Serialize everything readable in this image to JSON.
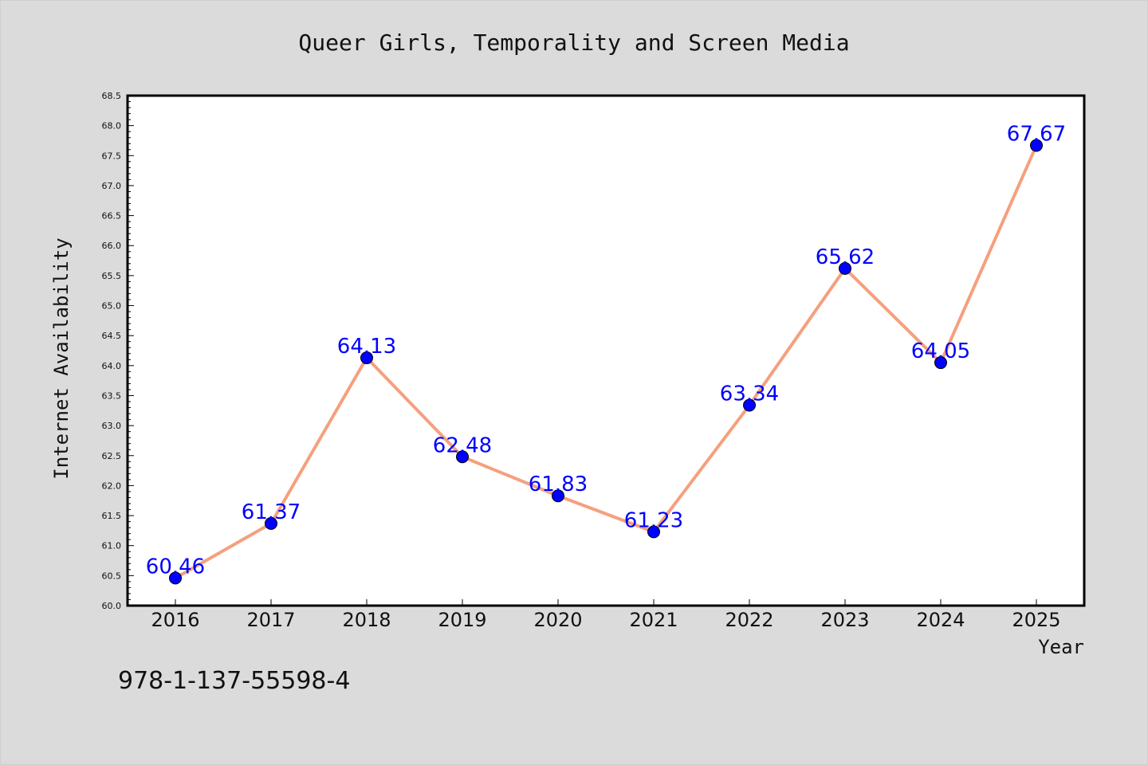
{
  "chart_data": {
    "type": "line",
    "title": "Queer Girls, Temporality and Screen Media",
    "xlabel": "Year",
    "ylabel": "Internet Availability",
    "categories": [
      "2016",
      "2017",
      "2018",
      "2019",
      "2020",
      "2021",
      "2022",
      "2023",
      "2024",
      "2025"
    ],
    "series": [
      {
        "values": [
          60.46,
          61.37,
          64.13,
          62.48,
          61.83,
          61.23,
          63.34,
          65.62,
          64.05,
          67.67
        ],
        "data_labels": [
          "60.46",
          "61.37",
          "64.13",
          "62.48",
          "61.83",
          "61.23",
          "63.34",
          "65.62",
          "64.05",
          "67.67"
        ],
        "line_color": "#f5a07e",
        "marker_color": "#0000ff",
        "label_color": "#0000ff"
      }
    ],
    "ylim": [
      60.0,
      68.5
    ],
    "y_major_ticks": [
      "60.0",
      "60.5",
      "61.0",
      "61.5",
      "62.0",
      "62.5",
      "63.0",
      "63.5",
      "64.0",
      "64.5",
      "65.0",
      "65.5",
      "66.0",
      "66.5",
      "67.0",
      "67.5",
      "68.0",
      "68.5"
    ],
    "grid": false,
    "legend": "none",
    "background_color": "#dbdbdb",
    "plot_background_color": "#ffffff"
  },
  "footer": {
    "isbn": "978-1-137-55598-4"
  }
}
